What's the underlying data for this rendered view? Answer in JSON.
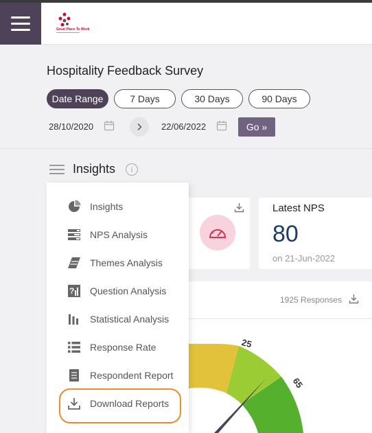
{
  "header": {
    "logo_text": "Great Place To Work",
    "menu_icon": "hamburger-icon"
  },
  "survey": {
    "title": "Hospitality Feedback Survey",
    "ranges": [
      "Date Range",
      "7 Days",
      "30 Days",
      "90 Days"
    ],
    "active_range": "Date Range",
    "start_date": "28/10/2020",
    "end_date": "22/06/2022",
    "go_label": "Go »"
  },
  "insights": {
    "title": "Insights",
    "info_glyph": "i"
  },
  "menu": {
    "items": [
      {
        "label": "Insights",
        "icon": "pie-chart-icon"
      },
      {
        "label": "NPS Analysis",
        "icon": "nps-bars-icon"
      },
      {
        "label": "Themes Analysis",
        "icon": "themes-icon"
      },
      {
        "label": "Question Analysis",
        "icon": "question-icon"
      },
      {
        "label": "Statistical Analysis",
        "icon": "bar-chart-icon"
      },
      {
        "label": "Response Rate",
        "icon": "list-icon"
      },
      {
        "label": "Respondent Report",
        "icon": "document-icon"
      },
      {
        "label": "Download Reports",
        "icon": "download-icon"
      }
    ],
    "highlighted": "Download Reports"
  },
  "nps_card": {
    "label": "Latest NPS",
    "value": "80",
    "date": "on 21-Jun-2022"
  },
  "gauge_card": {
    "responses": "1925 Responses",
    "tick_labels": [
      "25",
      "65"
    ]
  },
  "colors": {
    "sidebar_accent": "#4e4259",
    "go_button": "#6f6283",
    "nps_value": "#1f3c69",
    "highlight_outline": "#f08a2c",
    "gauge_yellow": "#e2c23a",
    "gauge_light_green": "#9ccc34",
    "gauge_green": "#55b02e"
  }
}
